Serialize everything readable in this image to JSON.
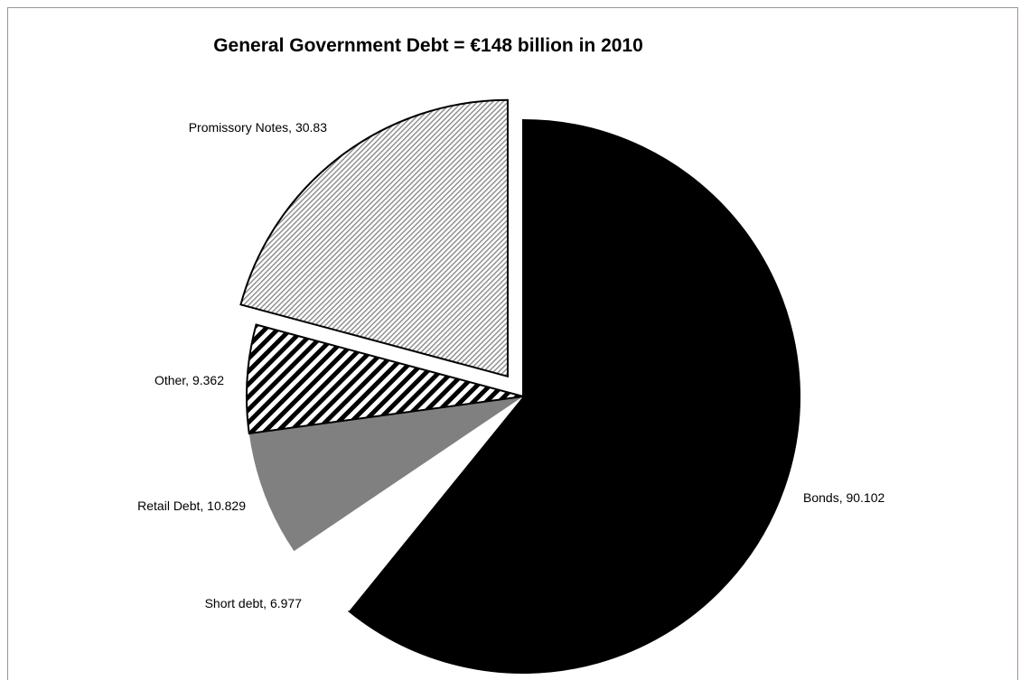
{
  "chart_data": {
    "type": "pie",
    "title": "General Government Debt = €148 billion in 2010",
    "exploded_slice": "Promissory Notes",
    "start": "12 o'clock",
    "direction": "clockwise",
    "slices": [
      {
        "name": "Bonds",
        "value": 90.102,
        "label": "Bonds, 90.102",
        "fill": "solid",
        "color": "#000000"
      },
      {
        "name": "Short debt",
        "value": 6.977,
        "label": "Short debt, 6.977",
        "fill": "solid",
        "color": "#ffffff"
      },
      {
        "name": "Retail Debt",
        "value": 10.829,
        "label": "Retail Debt, 10.829",
        "fill": "solid",
        "color": "#808080"
      },
      {
        "name": "Other",
        "value": 9.362,
        "label": "Other, 9.362",
        "fill": "wide-diagonal-stripes",
        "color": "#000000"
      },
      {
        "name": "Promissory Notes",
        "value": 30.83,
        "label": "Promissory Notes, 30.83",
        "fill": "light-diagonal-hatch",
        "color": "#000000"
      }
    ]
  }
}
